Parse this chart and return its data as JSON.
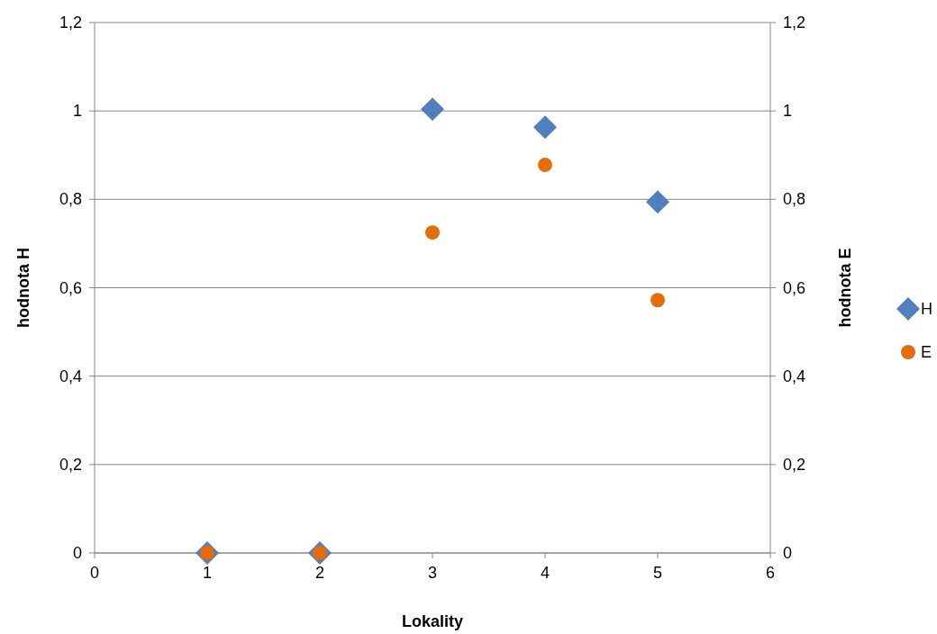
{
  "chart_data": {
    "type": "scatter",
    "xlabel": "Lokality",
    "ylabel": "hodnota H",
    "y2label": "hodnota E",
    "xlim": [
      0,
      6
    ],
    "xticks": [
      0,
      1,
      2,
      3,
      4,
      5,
      6
    ],
    "ylim": [
      0,
      1.2
    ],
    "yticks": [
      0,
      {
        "value": 0.2,
        "label": "0,2"
      },
      {
        "value": 0.4,
        "label": "0,4"
      },
      {
        "value": 0.6,
        "label": "0,6"
      },
      {
        "value": 0.8,
        "label": "0,8"
      },
      1,
      {
        "value": 1.2,
        "label": "1,2"
      }
    ],
    "y2lim": [
      0,
      1.2
    ],
    "y2ticks": [
      0,
      {
        "value": 0.2,
        "label": "0,2"
      },
      {
        "value": 0.4,
        "label": "0,4"
      },
      {
        "value": 0.6,
        "label": "0,6"
      },
      {
        "value": 0.8,
        "label": "0,8"
      },
      1,
      {
        "value": 1.2,
        "label": "1,2"
      }
    ],
    "grid": "y",
    "legend": "right",
    "series": [
      {
        "name": "H",
        "color": "#4f81bd",
        "marker": "diamond",
        "x": [
          1,
          2,
          3,
          4,
          5
        ],
        "values": [
          0,
          0,
          1.004,
          0.963,
          0.794
        ]
      },
      {
        "name": "E",
        "color": "#e46c0a",
        "marker": "circle",
        "x": [
          1,
          2,
          3,
          4,
          5
        ],
        "values": [
          0,
          0,
          0.725,
          0.878,
          0.572
        ]
      }
    ]
  }
}
